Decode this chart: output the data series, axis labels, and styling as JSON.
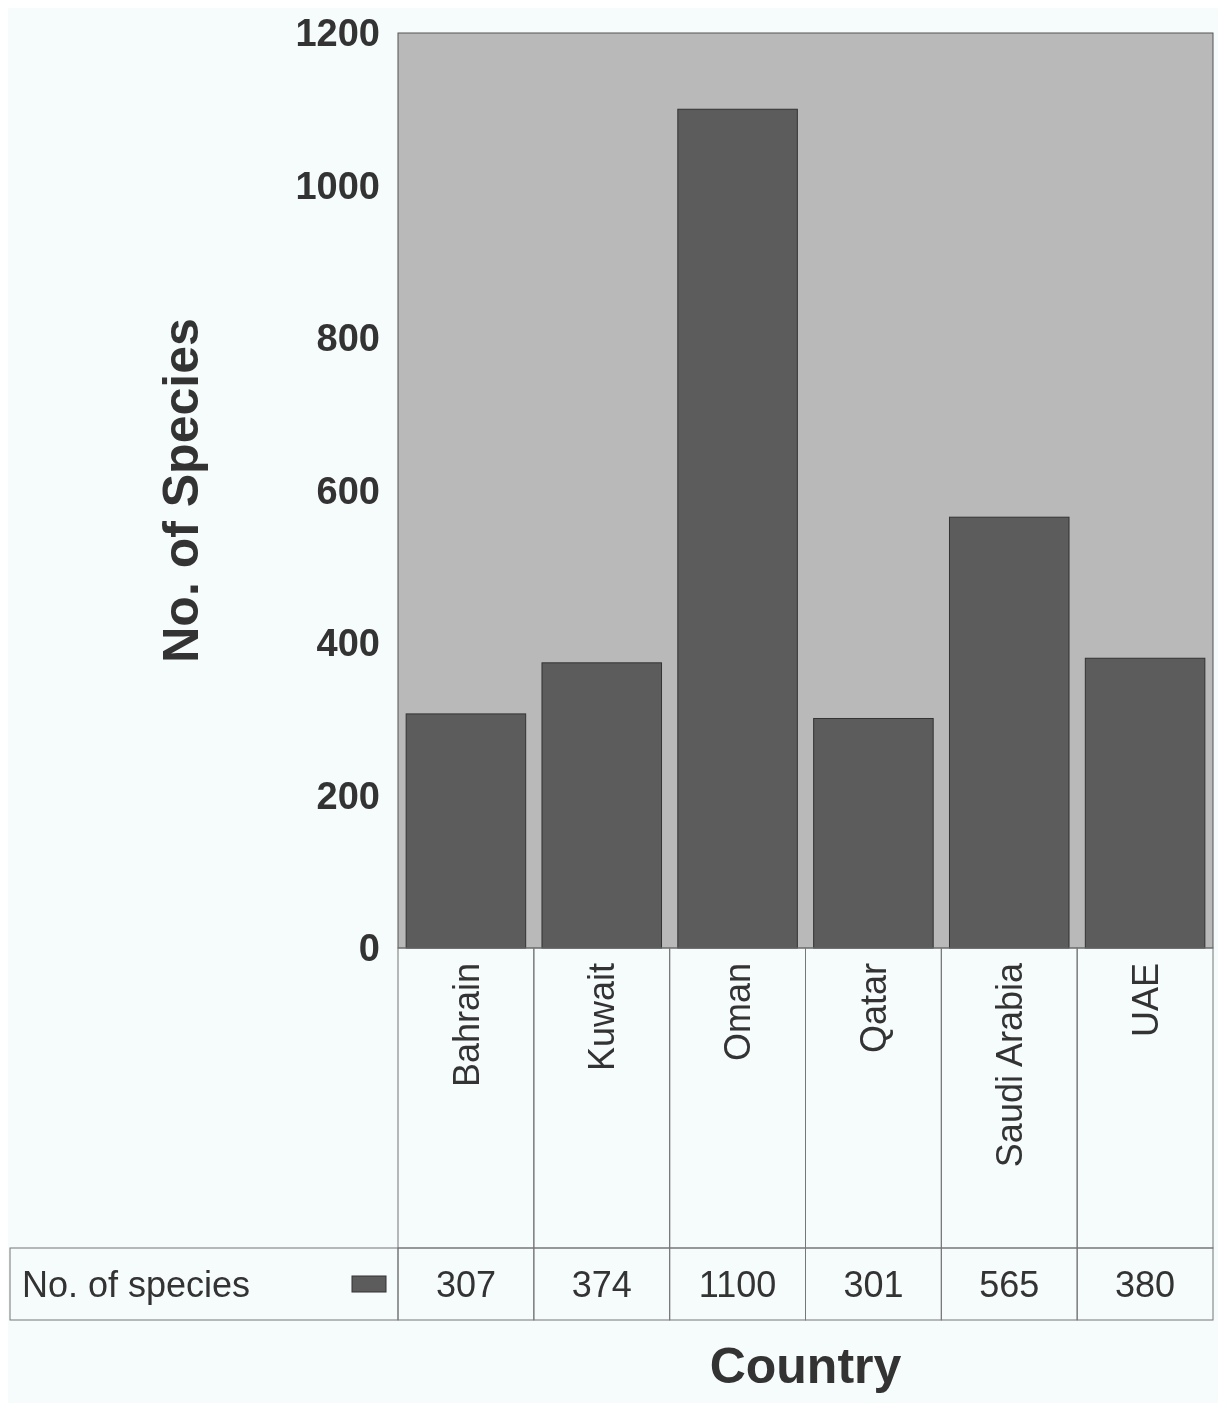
{
  "chart_data": {
    "type": "bar",
    "xlabel": "Country",
    "ylabel": "No. of Species",
    "categories": [
      "Bahrain",
      "Kuwait",
      "Oman",
      "Qatar",
      "Saudi Arabia",
      "UAE"
    ],
    "series": [
      {
        "name": "No. of species",
        "color": "#5c5c5c",
        "values": [
          307,
          374,
          1100,
          301,
          565,
          380
        ]
      }
    ],
    "ylim": [
      0,
      1200
    ],
    "yticks": [
      0,
      200,
      400,
      600,
      800,
      1000,
      1200
    ],
    "grid": false,
    "legend": "bottom",
    "data_labels": true
  }
}
